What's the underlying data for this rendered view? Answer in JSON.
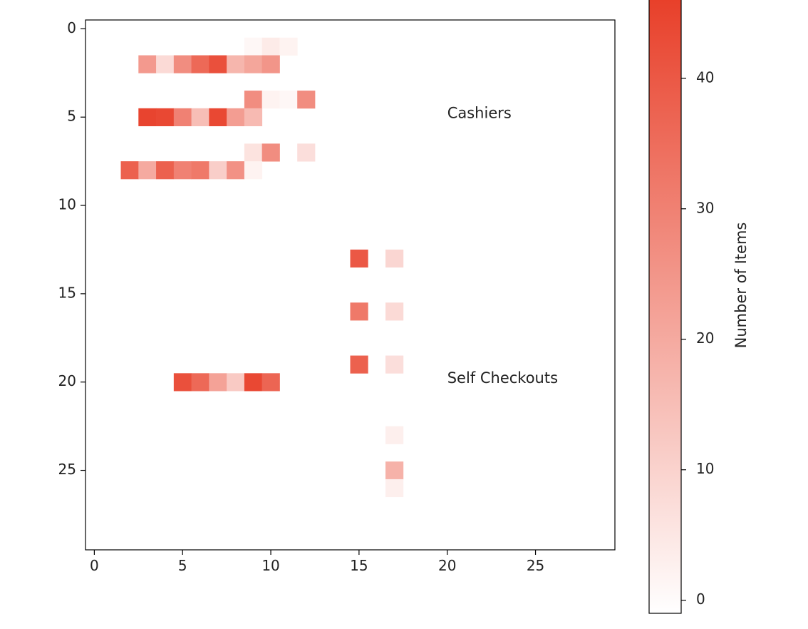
{
  "chart_data": {
    "type": "heatmap",
    "title": "",
    "xlabel": "",
    "ylabel": "",
    "grid_size": 30,
    "xlim": [
      -0.5,
      29.5
    ],
    "ylim": [
      29.5,
      -0.5
    ],
    "x_ticks": [
      0,
      5,
      10,
      15,
      20,
      25
    ],
    "y_ticks": [
      0,
      5,
      10,
      15,
      20,
      25
    ],
    "grid": false,
    "colormap": {
      "low": "#ffffff",
      "high": "#e8402a"
    },
    "colorbar": {
      "label": "Number of Items",
      "min": -1,
      "max": 46,
      "ticks": [
        0,
        10,
        20,
        30,
        40
      ],
      "position": "right"
    },
    "annotations": [
      {
        "text": "Cashiers",
        "x": 20.0,
        "y": 4.8
      },
      {
        "text": "Self Checkouts",
        "x": 20.0,
        "y": 19.8
      }
    ],
    "cells": [
      [
        9,
        1,
        1
      ],
      [
        10,
        1,
        4
      ],
      [
        11,
        1,
        2
      ],
      [
        3,
        2,
        24
      ],
      [
        4,
        2,
        8
      ],
      [
        5,
        2,
        27
      ],
      [
        6,
        2,
        36
      ],
      [
        7,
        2,
        42
      ],
      [
        8,
        2,
        17
      ],
      [
        9,
        2,
        21
      ],
      [
        10,
        2,
        25
      ],
      [
        9,
        4,
        27
      ],
      [
        10,
        4,
        2
      ],
      [
        11,
        4,
        1
      ],
      [
        12,
        4,
        27
      ],
      [
        3,
        5,
        45
      ],
      [
        4,
        5,
        44
      ],
      [
        5,
        5,
        30
      ],
      [
        6,
        5,
        15
      ],
      [
        7,
        5,
        44
      ],
      [
        8,
        5,
        23
      ],
      [
        9,
        5,
        16
      ],
      [
        9,
        7,
        6
      ],
      [
        10,
        7,
        27
      ],
      [
        12,
        7,
        7
      ],
      [
        2,
        8,
        38
      ],
      [
        3,
        8,
        20
      ],
      [
        4,
        8,
        38
      ],
      [
        5,
        8,
        30
      ],
      [
        6,
        8,
        32
      ],
      [
        7,
        8,
        11
      ],
      [
        8,
        8,
        26
      ],
      [
        9,
        8,
        2
      ],
      [
        15,
        13,
        40
      ],
      [
        17,
        13,
        9
      ],
      [
        15,
        16,
        32
      ],
      [
        17,
        16,
        8
      ],
      [
        15,
        19,
        38
      ],
      [
        17,
        19,
        7
      ],
      [
        5,
        20,
        42
      ],
      [
        6,
        20,
        36
      ],
      [
        7,
        20,
        22
      ],
      [
        8,
        20,
        12
      ],
      [
        9,
        20,
        44
      ],
      [
        10,
        20,
        37
      ],
      [
        17,
        23,
        3
      ],
      [
        17,
        25,
        18
      ],
      [
        17,
        26,
        3
      ]
    ]
  }
}
